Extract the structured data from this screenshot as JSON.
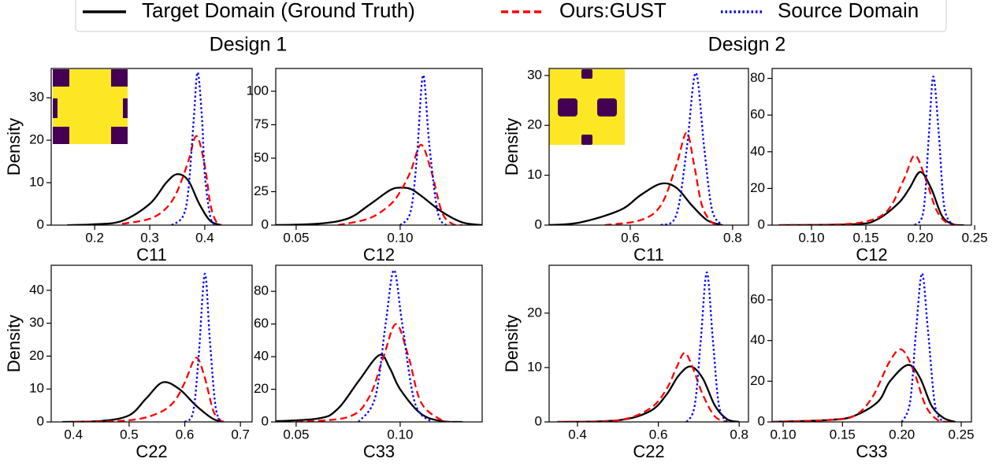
{
  "legend": [
    {
      "name": "Target Domain (Ground Truth)",
      "color": "#000000",
      "linestyle": "solid"
    },
    {
      "name": "Ours:GUST",
      "color": "#ff0000",
      "linestyle": "dashed"
    },
    {
      "name": "Source Domain",
      "color": "#0000ff",
      "linestyle": "dotted"
    }
  ],
  "group_titles": [
    "Design 1",
    "Design 2"
  ],
  "chart_data": [
    {
      "type": "line",
      "xlabel": "C11",
      "ylabel": "Density",
      "xlim": [
        0.121,
        0.486
      ],
      "ylim": [
        0,
        36.9
      ],
      "xticks": [
        0.2,
        0.3,
        0.4
      ],
      "yticks": [
        0,
        10,
        20,
        30
      ],
      "series": [
        {
          "x": [
            0.15,
            0.2,
            0.25,
            0.3,
            0.33,
            0.35,
            0.37,
            0.39,
            0.41,
            0.43
          ],
          "values": [
            0,
            0.2,
            1,
            5,
            10,
            12,
            10.5,
            5,
            1,
            0
          ]
        },
        {
          "x": [
            0.25,
            0.3,
            0.33,
            0.35,
            0.37,
            0.385,
            0.4,
            0.41,
            0.42,
            0.43
          ],
          "values": [
            0.3,
            1.5,
            4,
            8,
            15,
            21,
            14,
            5,
            1,
            0
          ]
        },
        {
          "x": [
            0.34,
            0.36,
            0.37,
            0.38,
            0.387,
            0.395,
            0.4,
            0.41,
            0.42
          ],
          "values": [
            0,
            2,
            8,
            25,
            36,
            25,
            12,
            2,
            0
          ]
        }
      ]
    },
    {
      "type": "line",
      "xlabel": "C12",
      "xlim": [
        0.0402,
        0.1394
      ],
      "ylim": [
        0,
        117
      ],
      "xticks": [
        0.05,
        {
          "value": 0.1,
          "label": "0.10"
        }
      ],
      "yticks": [
        0,
        25,
        50,
        75,
        100
      ],
      "series": [
        {
          "x": [
            0.035,
            0.06,
            0.075,
            0.085,
            0.095,
            0.1,
            0.105,
            0.11,
            0.12,
            0.13,
            0.14
          ],
          "values": [
            0,
            1,
            5,
            15,
            26,
            28,
            27,
            22,
            10,
            2,
            0
          ]
        },
        {
          "x": [
            0.07,
            0.085,
            0.095,
            0.1,
            0.105,
            0.11,
            0.115,
            0.12,
            0.125,
            0.13
          ],
          "values": [
            0,
            5,
            15,
            25,
            40,
            60,
            40,
            10,
            1,
            0
          ]
        },
        {
          "x": [
            0.1,
            0.105,
            0.108,
            0.111,
            0.114,
            0.118,
            0.122
          ],
          "values": [
            0,
            10,
            50,
            112,
            60,
            10,
            0
          ]
        }
      ]
    },
    {
      "type": "line",
      "xlabel": "C11",
      "ylabel": "Density",
      "xlim": [
        0.4415,
        0.831
      ],
      "ylim": [
        0,
        31.4
      ],
      "xticks": [
        0.6,
        0.8
      ],
      "yticks": [
        0,
        10,
        20,
        30
      ],
      "series": [
        {
          "x": [
            0.43,
            0.5,
            0.58,
            0.62,
            0.66,
            0.69,
            0.72,
            0.75,
            0.78
          ],
          "values": [
            0,
            0.5,
            3,
            6,
            8.3,
            7.5,
            4,
            1,
            0
          ]
        },
        {
          "x": [
            0.55,
            0.62,
            0.66,
            0.69,
            0.71,
            0.725,
            0.74,
            0.76,
            0.78
          ],
          "values": [
            0,
            1,
            4,
            12,
            18.5,
            12,
            4,
            0.5,
            0
          ]
        },
        {
          "x": [
            0.66,
            0.69,
            0.71,
            0.728,
            0.745,
            0.76,
            0.78
          ],
          "values": [
            0,
            2,
            15,
            30.5,
            15,
            3,
            0
          ]
        }
      ]
    },
    {
      "type": "line",
      "xlabel": "C12",
      "xlim": [
        0.0638,
        0.247
      ],
      "ylim": [
        0,
        85.4
      ],
      "xticks": [
        {
          "value": 0.1,
          "label": "0.10"
        },
        0.15,
        {
          "value": 0.2,
          "label": "0.20"
        },
        0.25
      ],
      "yticks": [
        0,
        20,
        40,
        60,
        80
      ],
      "series": [
        {
          "x": [
            0.07,
            0.14,
            0.16,
            0.18,
            0.19,
            0.2,
            0.21,
            0.22,
            0.23,
            0.24
          ],
          "values": [
            0,
            0.5,
            3,
            12,
            20,
            29,
            20,
            5,
            0.5,
            0
          ]
        },
        {
          "x": [
            0.07,
            0.12,
            0.15,
            0.17,
            0.185,
            0.195,
            0.205,
            0.215,
            0.225,
            0.235
          ],
          "values": [
            0,
            0.3,
            2,
            8,
            25,
            38,
            25,
            8,
            1,
            0
          ]
        },
        {
          "x": [
            0.195,
            0.203,
            0.208,
            0.212,
            0.217,
            0.222,
            0.23
          ],
          "values": [
            0,
            8,
            50,
            81,
            50,
            10,
            0
          ]
        }
      ]
    },
    {
      "type": "line",
      "xlabel": "C22",
      "ylabel": "Density",
      "xlim": [
        0.36,
        0.721
      ],
      "ylim": [
        0,
        47.6
      ],
      "xticks": [
        0.4,
        0.5,
        0.6,
        0.7
      ],
      "yticks": [
        0,
        10,
        20,
        30,
        40
      ],
      "series": [
        {
          "x": [
            0.38,
            0.45,
            0.5,
            0.53,
            0.56,
            0.59,
            0.62,
            0.65,
            0.67
          ],
          "values": [
            0,
            0.3,
            2,
            7,
            12,
            10,
            5,
            1,
            0
          ]
        },
        {
          "x": [
            0.4,
            0.5,
            0.55,
            0.58,
            0.6,
            0.62,
            0.635,
            0.65,
            0.66,
            0.67
          ],
          "values": [
            0,
            0.5,
            2.5,
            6,
            12,
            19.5,
            14,
            4,
            1,
            0
          ]
        },
        {
          "x": [
            0.6,
            0.615,
            0.625,
            0.636,
            0.645,
            0.655,
            0.665
          ],
          "values": [
            0,
            3,
            20,
            45,
            25,
            5,
            0
          ]
        }
      ]
    },
    {
      "type": "line",
      "xlabel": "C33",
      "xlim": [
        0.0402,
        0.1394
      ],
      "ylim": [
        0,
        96
      ],
      "xticks": [
        0.05,
        {
          "value": 0.1,
          "label": "0.10"
        }
      ],
      "yticks": [
        0,
        20,
        40,
        60,
        80
      ],
      "series": [
        {
          "x": [
            0.03,
            0.06,
            0.07,
            0.08,
            0.09,
            0.095,
            0.1,
            0.11,
            0.12,
            0.13
          ],
          "values": [
            0,
            2,
            8,
            25,
            41,
            33,
            20,
            5,
            0.5,
            0
          ]
        },
        {
          "x": [
            0.05,
            0.075,
            0.085,
            0.092,
            0.098,
            0.104,
            0.11,
            0.12,
            0.125
          ],
          "values": [
            0,
            3,
            15,
            40,
            60,
            40,
            12,
            1,
            0
          ]
        },
        {
          "x": [
            0.08,
            0.088,
            0.093,
            0.097,
            0.101,
            0.107,
            0.115
          ],
          "values": [
            0,
            15,
            60,
            93,
            60,
            12,
            0
          ]
        }
      ]
    },
    {
      "type": "line",
      "xlabel": "C22",
      "ylabel": "Density",
      "xlim": [
        0.3298,
        0.823
      ],
      "ylim": [
        0,
        28.8
      ],
      "xticks": [
        0.4,
        0.6,
        0.8
      ],
      "yticks": [
        0,
        10,
        20
      ],
      "series": [
        {
          "x": [
            0.35,
            0.5,
            0.58,
            0.62,
            0.65,
            0.68,
            0.71,
            0.74,
            0.77,
            0.8
          ],
          "values": [
            0,
            0.3,
            2,
            5,
            8.5,
            10.2,
            8,
            3,
            0.5,
            0
          ]
        },
        {
          "x": [
            0.35,
            0.5,
            0.58,
            0.62,
            0.645,
            0.665,
            0.685,
            0.71,
            0.74,
            0.77
          ],
          "values": [
            0,
            0.3,
            2.5,
            6,
            10,
            12.7,
            10,
            5,
            1,
            0
          ]
        },
        {
          "x": [
            0.67,
            0.69,
            0.705,
            0.72,
            0.735,
            0.75,
            0.77
          ],
          "values": [
            0,
            3,
            15,
            27.5,
            15,
            3,
            0
          ]
        }
      ]
    },
    {
      "type": "line",
      "xlabel": "C33",
      "xlim": [
        0.0907,
        0.2586
      ],
      "ylim": [
        0,
        77
      ],
      "xticks": [
        {
          "value": 0.1,
          "label": "0.10"
        },
        0.15,
        {
          "value": 0.2,
          "label": "0.20"
        },
        0.25
      ],
      "yticks": [
        0,
        20,
        40,
        60
      ],
      "series": [
        {
          "x": [
            0.09,
            0.14,
            0.16,
            0.18,
            0.19,
            0.205,
            0.215,
            0.225,
            0.235,
            0.245
          ],
          "values": [
            0,
            1,
            3,
            10,
            20,
            28,
            22,
            8,
            2,
            0
          ]
        },
        {
          "x": [
            0.09,
            0.14,
            0.16,
            0.175,
            0.19,
            0.2,
            0.21,
            0.22,
            0.23,
            0.24
          ],
          "values": [
            0,
            1,
            3,
            12,
            30,
            35.5,
            25,
            8,
            1,
            0
          ]
        },
        {
          "x": [
            0.2,
            0.207,
            0.212,
            0.217,
            0.222,
            0.228,
            0.235
          ],
          "values": [
            0,
            10,
            45,
            73,
            45,
            8,
            0
          ]
        }
      ]
    }
  ]
}
